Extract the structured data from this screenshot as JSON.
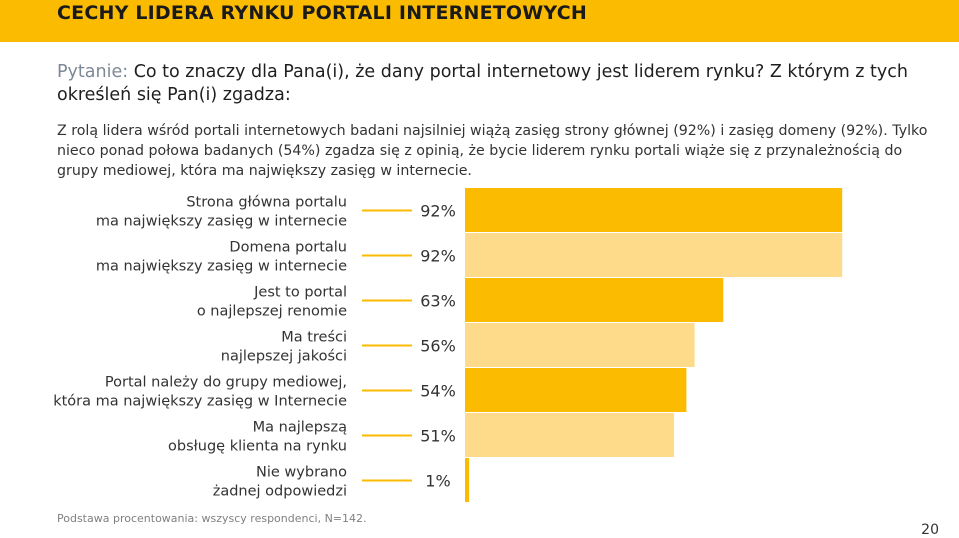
{
  "header": {
    "title": "CECHY LIDERA RYNKU PORTALI INTERNETOWYCH"
  },
  "question": {
    "prefix": "Pytanie:",
    "text": " Co to znaczy dla Pana(i), że dany portal internetowy jest liderem rynku? Z którym z tych określeń się Pan(i) zgadza:"
  },
  "description": "Z rolą lidera wśród portali internetowych badani najsilniej wiążą zasięg strony głównej (92%) i zasięg domeny (92%). Tylko nieco ponad połowa badanych (54%) zgadza się z opinią, że bycie liderem rynku portali wiąże się z przynależnością do grupy mediowej, która ma największy zasięg w internecie.",
  "chart_data": {
    "type": "bar",
    "orientation": "horizontal",
    "categories": [
      [
        "Strona główna portalu",
        "ma największy zasięg w internecie"
      ],
      [
        "Domena portalu",
        "ma największy zasięg w internecie"
      ],
      [
        "Jest to portal",
        "o najlepszej renomie"
      ],
      [
        "Ma treści",
        "najlepszej jakości"
      ],
      [
        "Portal należy do grupy mediowej,",
        "która ma największy zasięg w Internecie"
      ],
      [
        "Ma najlepszą",
        "obsługę klienta na rynku"
      ],
      [
        "Nie wybrano",
        "żadnej odpowiedzi"
      ]
    ],
    "values": [
      92,
      92,
      63,
      56,
      54,
      51,
      1
    ],
    "value_labels": [
      "92%",
      "92%",
      "63%",
      "56%",
      "54%",
      "51%",
      "1%"
    ],
    "xlim": [
      0,
      100
    ],
    "colors": [
      "#fbbb00",
      "#fddb8b"
    ],
    "grid": false
  },
  "footnote": "Podstawa procentowania: wszyscy respondenci, N=142.",
  "page_number": "20"
}
